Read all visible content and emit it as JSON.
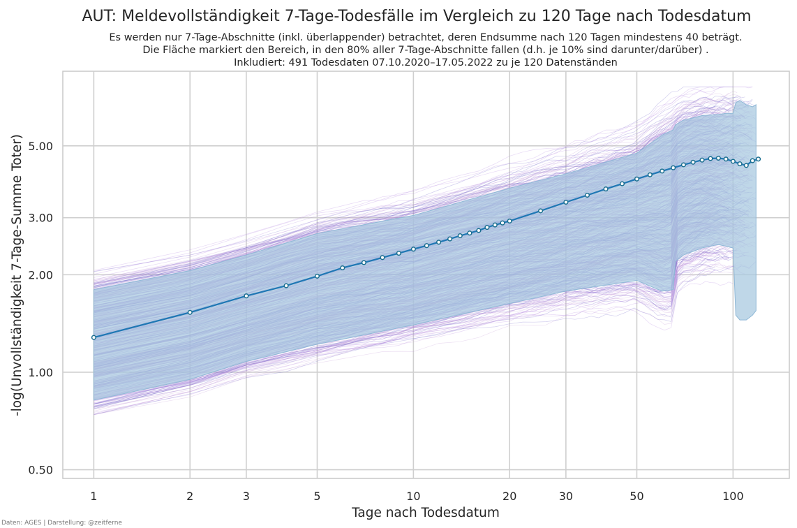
{
  "chart_data": {
    "type": "line",
    "title": "AUT: Meldevollständigkeit 7-Tage-Todesfälle im Vergleich zu 120 Tage nach Todesdatum",
    "subtitle_lines": [
      "Es werden nur 7-Tage-Abschnitte (inkl. überlappender) betrachtet, deren Endsumme nach 120 Tagen mindestens 40 beträgt.",
      "Die Fläche markiert den Bereich, in den 80% aller 7-Tage-Abschnitte fallen (d.h. je 10% sind darunter/darüber) .",
      "Inkludiert: 491 Todesdaten 07.10.2020–17.05.2022 zu je 120 Datenständen"
    ],
    "xlabel": "Tage nach Todesdatum",
    "ylabel": "-log(Unvollständigkeit 7-Tage-Summe Toter)",
    "x_scale": "log",
    "y_scale": "log",
    "xlim": [
      0.8,
      150
    ],
    "ylim": [
      0.47,
      8.5
    ],
    "x_ticks": [
      1,
      2,
      3,
      5,
      10,
      20,
      30,
      50,
      100
    ],
    "x_tick_labels": [
      "1",
      "2",
      "3",
      "5",
      "10",
      "20",
      "30",
      "50",
      "100"
    ],
    "y_ticks": [
      0.5,
      1.0,
      2.0,
      3.0,
      5.0
    ],
    "y_tick_labels": [
      "0.50",
      "1.00",
      "2.00",
      "3.00",
      "5.00"
    ],
    "grid": true,
    "median_series": {
      "name": "",
      "color": "#1f77b4",
      "x": [
        1,
        2,
        3,
        4,
        5,
        6,
        7,
        8,
        9,
        10,
        11,
        12,
        13,
        14,
        15,
        16,
        17,
        18,
        19,
        20,
        25,
        30,
        35,
        40,
        45,
        50,
        55,
        60,
        65,
        70,
        75,
        80,
        85,
        90,
        95,
        100,
        105,
        110,
        115,
        120
      ],
      "y": [
        1.28,
        1.53,
        1.72,
        1.85,
        1.98,
        2.1,
        2.18,
        2.26,
        2.33,
        2.4,
        2.46,
        2.52,
        2.58,
        2.64,
        2.69,
        2.74,
        2.8,
        2.85,
        2.89,
        2.93,
        3.15,
        3.35,
        3.52,
        3.68,
        3.82,
        3.95,
        4.07,
        4.18,
        4.28,
        4.37,
        4.45,
        4.52,
        4.57,
        4.58,
        4.55,
        4.48,
        4.4,
        4.35,
        4.5,
        4.55
      ]
    },
    "band_80pct": {
      "color": "#a6c8df",
      "x": [
        1,
        2,
        3,
        5,
        10,
        20,
        30,
        50,
        60,
        65,
        66,
        70,
        80,
        90,
        95,
        100,
        102,
        105,
        110,
        115,
        118
      ],
      "lower": [
        0.82,
        0.95,
        1.08,
        1.22,
        1.4,
        1.63,
        1.78,
        1.92,
        1.78,
        1.8,
        2.2,
        2.3,
        2.42,
        2.48,
        2.45,
        2.42,
        1.5,
        1.45,
        1.45,
        1.5,
        1.55
      ],
      "upper": [
        1.8,
        2.06,
        2.3,
        2.68,
        3.05,
        3.7,
        4.1,
        4.75,
        5.4,
        5.6,
        5.8,
        6.0,
        6.2,
        6.25,
        6.3,
        6.3,
        6.8,
        6.9,
        6.7,
        6.6,
        6.7
      ]
    },
    "individual_lines": {
      "count": 491,
      "colors": [
        "#7466c9",
        "#b48ae0",
        "#c49ad6"
      ]
    }
  },
  "credit": "Daten: AGES | Darstellung: @zeitferne"
}
